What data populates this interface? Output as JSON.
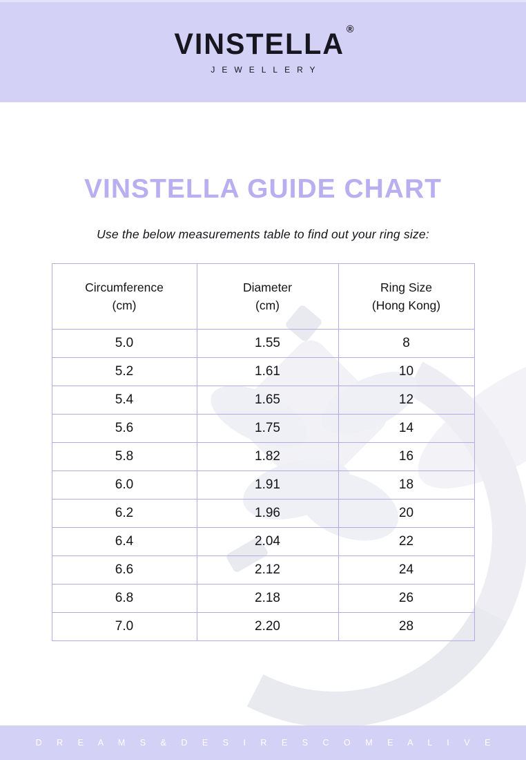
{
  "brand": {
    "name": "VINSTELLA",
    "registered_mark": "®",
    "subtitle": "JEWELLERY"
  },
  "content": {
    "title": "VINSTELLA GUIDE CHART",
    "instruction": "Use the below measurements table to find out your ring size:"
  },
  "table": {
    "columns": [
      {
        "line1": "Circumference",
        "line2": "(cm)"
      },
      {
        "line1": "Diameter",
        "line2": "(cm)"
      },
      {
        "line1": "Ring Size",
        "line2": "(Hong Kong)"
      }
    ],
    "rows": [
      [
        "5.0",
        "1.55",
        "8"
      ],
      [
        "5.2",
        "1.61",
        "10"
      ],
      [
        "5.4",
        "1.65",
        "12"
      ],
      [
        "5.6",
        "1.75",
        "14"
      ],
      [
        "5.8",
        "1.82",
        "16"
      ],
      [
        "6.0",
        "1.91",
        "18"
      ],
      [
        "6.2",
        "1.96",
        "20"
      ],
      [
        "6.4",
        "2.04",
        "22"
      ],
      [
        "6.6",
        "2.12",
        "24"
      ],
      [
        "6.8",
        "2.18",
        "26"
      ],
      [
        "7.0",
        "2.20",
        "28"
      ]
    ]
  },
  "footer": {
    "tagline": "D R E A M S   &   D E S I R E S   C O M E   A L I V E"
  },
  "watermark": {
    "description": "faint-diamond-ring-photo"
  },
  "colors": {
    "banner": "#d3d1f6",
    "title": "#b9aef0",
    "table_border": "#b1abe2",
    "text": "#1b1a21",
    "footer_text": "#ffffff"
  }
}
